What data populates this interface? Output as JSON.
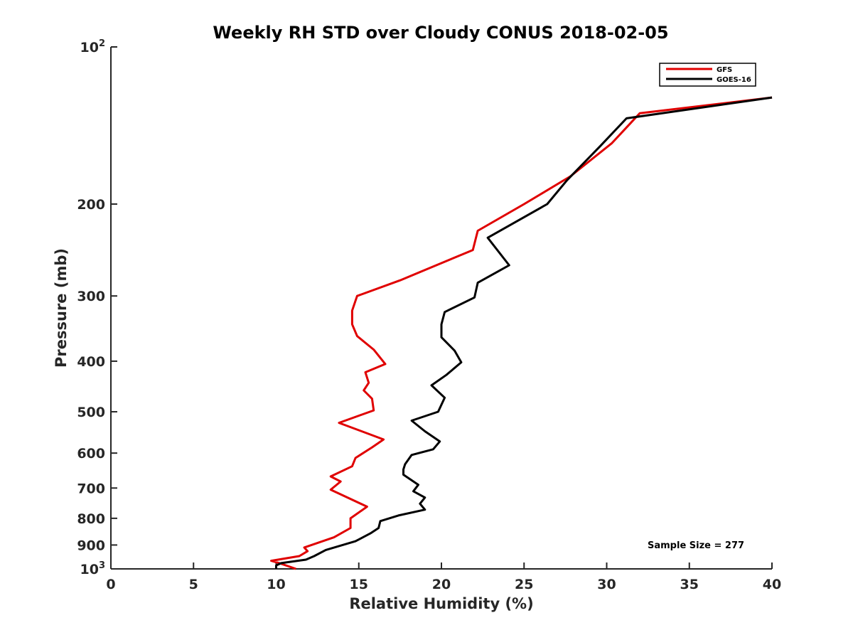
{
  "chart_data": {
    "type": "line",
    "title": "Weekly RH STD over Cloudy CONUS 2018-02-05",
    "xlabel": "Relative Humidity (%)",
    "ylabel": "Pressure (mb)",
    "xlim": [
      0,
      40
    ],
    "ylim": [
      1000,
      100
    ],
    "y_scale": "log",
    "y_reversed": true,
    "x_ticks": [
      0,
      5,
      10,
      15,
      20,
      25,
      30,
      35,
      40
    ],
    "x_tick_labels": [
      "0",
      "5",
      "10",
      "15",
      "20",
      "25",
      "30",
      "35",
      "40"
    ],
    "y_ticks": [
      100,
      200,
      300,
      400,
      500,
      600,
      700,
      800,
      900,
      1000
    ],
    "y_tick_labels": [
      {
        "base": "10",
        "exp": "2"
      },
      {
        "base": "200"
      },
      {
        "base": "300"
      },
      {
        "base": "400"
      },
      {
        "base": "500"
      },
      {
        "base": "600"
      },
      {
        "base": "700"
      },
      {
        "base": "800"
      },
      {
        "base": "900"
      },
      {
        "base": "10",
        "exp": "3"
      }
    ],
    "grid": false,
    "legend_position": "top-right",
    "annotation": "Sample Size = 277",
    "series": [
      {
        "name": "GFS",
        "color": "#e00000",
        "points": [
          [
            40.0,
            125
          ],
          [
            32.0,
            134
          ],
          [
            30.3,
            153
          ],
          [
            27.8,
            177
          ],
          [
            25.0,
            200
          ],
          [
            22.2,
            225
          ],
          [
            21.9,
            245
          ],
          [
            17.5,
            280
          ],
          [
            14.9,
            300
          ],
          [
            14.6,
            320
          ],
          [
            14.6,
            340
          ],
          [
            14.9,
            358
          ],
          [
            15.9,
            380
          ],
          [
            16.6,
            405
          ],
          [
            15.4,
            420
          ],
          [
            15.6,
            440
          ],
          [
            15.3,
            455
          ],
          [
            15.8,
            472
          ],
          [
            15.9,
            497
          ],
          [
            13.8,
            525
          ],
          [
            16.5,
            565
          ],
          [
            15.8,
            585
          ],
          [
            14.8,
            613
          ],
          [
            14.6,
            636
          ],
          [
            13.3,
            665
          ],
          [
            13.9,
            680
          ],
          [
            13.3,
            705
          ],
          [
            15.5,
            760
          ],
          [
            14.5,
            800
          ],
          [
            14.5,
            835
          ],
          [
            13.5,
            870
          ],
          [
            11.7,
            910
          ],
          [
            11.9,
            925
          ],
          [
            11.4,
            945
          ],
          [
            9.7,
            965
          ],
          [
            10.2,
            975
          ],
          [
            11.2,
            1000
          ]
        ]
      },
      {
        "name": "GOES-16",
        "color": "#000000",
        "points": [
          [
            40.0,
            125
          ],
          [
            31.2,
            137
          ],
          [
            29.6,
            155
          ],
          [
            27.6,
            180
          ],
          [
            26.4,
            200
          ],
          [
            22.8,
            232
          ],
          [
            24.1,
            262
          ],
          [
            22.2,
            283
          ],
          [
            22.0,
            302
          ],
          [
            20.2,
            322
          ],
          [
            20.0,
            340
          ],
          [
            20.0,
            360
          ],
          [
            20.8,
            382
          ],
          [
            21.2,
            402
          ],
          [
            20.3,
            425
          ],
          [
            19.4,
            445
          ],
          [
            20.2,
            470
          ],
          [
            19.8,
            500
          ],
          [
            18.2,
            520
          ],
          [
            19.0,
            545
          ],
          [
            19.9,
            570
          ],
          [
            19.5,
            590
          ],
          [
            18.2,
            605
          ],
          [
            17.8,
            630
          ],
          [
            17.7,
            645
          ],
          [
            17.7,
            660
          ],
          [
            18.6,
            690
          ],
          [
            18.3,
            710
          ],
          [
            19.0,
            730
          ],
          [
            18.7,
            750
          ],
          [
            19.0,
            770
          ],
          [
            17.4,
            790
          ],
          [
            16.3,
            810
          ],
          [
            16.2,
            835
          ],
          [
            15.7,
            855
          ],
          [
            14.8,
            885
          ],
          [
            13.0,
            920
          ],
          [
            12.3,
            945
          ],
          [
            11.8,
            960
          ],
          [
            10.3,
            975
          ],
          [
            10.0,
            985
          ],
          [
            10.0,
            1000
          ]
        ]
      }
    ]
  }
}
